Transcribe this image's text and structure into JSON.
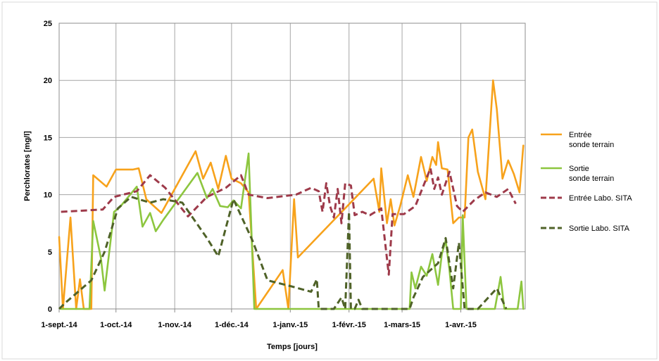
{
  "chart_data": {
    "type": "line",
    "title": "",
    "xlabel": "Temps [jours]",
    "ylabel": "Perchlorates [mg/l]",
    "ylim": [
      0,
      25
    ],
    "yticks": [
      "0",
      "5",
      "10",
      "15",
      "20",
      "25"
    ],
    "xlim": [
      "2014-09-01",
      "2015-05-05"
    ],
    "xticks": [
      {
        "date": "2014-09-01",
        "label": "1-sept.-14"
      },
      {
        "date": "2014-10-01",
        "label": "1-oct.-14"
      },
      {
        "date": "2014-11-01",
        "label": "1-nov.-14"
      },
      {
        "date": "2014-12-01",
        "label": "1-déc.-14"
      },
      {
        "date": "2015-01-01",
        "label": "1-janv.-15"
      },
      {
        "date": "2015-02-01",
        "label": "1-févr.-15"
      },
      {
        "date": "2015-03-01",
        "label": "1-mars-15"
      },
      {
        "date": "2015-04-01",
        "label": "1-avr.-15"
      }
    ],
    "grid": true,
    "legend_position": "right",
    "series": [
      {
        "name": "Entrée\nsonde terrain",
        "color": "#F7A21B",
        "dash": false,
        "points": [
          [
            "2014-09-01",
            6.3
          ],
          [
            "2014-09-03",
            0
          ],
          [
            "2014-09-07",
            8.0
          ],
          [
            "2014-09-10",
            0
          ],
          [
            "2014-09-12",
            2.6
          ],
          [
            "2014-09-14",
            0
          ],
          [
            "2014-09-18",
            0
          ],
          [
            "2014-09-19",
            11.7
          ],
          [
            "2014-09-26",
            10.7
          ],
          [
            "2014-10-01",
            12.2
          ],
          [
            "2014-10-10",
            12.2
          ],
          [
            "2014-10-13",
            12.3
          ],
          [
            "2014-10-17",
            9.6
          ],
          [
            "2014-10-25",
            8.4
          ],
          [
            "2014-11-12",
            13.8
          ],
          [
            "2014-11-16",
            11.4
          ],
          [
            "2014-11-20",
            12.8
          ],
          [
            "2014-11-24",
            10.5
          ],
          [
            "2014-11-28",
            13.4
          ],
          [
            "2014-12-01",
            11.4
          ],
          [
            "2014-12-06",
            11.0
          ],
          [
            "2014-12-10",
            10.2
          ],
          [
            "2014-12-14",
            0
          ],
          [
            "2014-12-28",
            3.4
          ],
          [
            "2014-12-31",
            0
          ],
          [
            "2015-01-03",
            9.6
          ],
          [
            "2015-01-05",
            4.5
          ],
          [
            "2015-02-14",
            11.4
          ],
          [
            "2015-02-17",
            8.5
          ],
          [
            "2015-02-18",
            12.3
          ],
          [
            "2015-02-21",
            7.5
          ],
          [
            "2015-02-23",
            9.6
          ],
          [
            "2015-02-25",
            7.3
          ],
          [
            "2015-02-28",
            9.0
          ],
          [
            "2015-03-04",
            11.7
          ],
          [
            "2015-03-07",
            9.8
          ],
          [
            "2015-03-11",
            13.3
          ],
          [
            "2015-03-14",
            11.2
          ],
          [
            "2015-03-17",
            13.3
          ],
          [
            "2015-03-19",
            12.6
          ],
          [
            "2015-03-20",
            14.6
          ],
          [
            "2015-03-22",
            12.3
          ],
          [
            "2015-03-25",
            12.2
          ],
          [
            "2015-03-28",
            7.5
          ],
          [
            "2015-03-31",
            8.0
          ],
          [
            "2015-04-03",
            8.0
          ],
          [
            "2015-04-05",
            15.0
          ],
          [
            "2015-04-07",
            15.7
          ],
          [
            "2015-04-10",
            12.0
          ],
          [
            "2015-04-14",
            9.6
          ],
          [
            "2015-04-18",
            20.0
          ],
          [
            "2015-04-20",
            17.5
          ],
          [
            "2015-04-23",
            11.4
          ],
          [
            "2015-04-26",
            13.0
          ],
          [
            "2015-04-29",
            11.8
          ],
          [
            "2015-05-02",
            10.2
          ],
          [
            "2015-05-04",
            14.3
          ]
        ]
      },
      {
        "name": "Sortie\nsonde terrain",
        "color": "#8DC63F",
        "dash": false,
        "points": [
          [
            "2014-09-02",
            0
          ],
          [
            "2014-09-17",
            0
          ],
          [
            "2014-09-19",
            7.7
          ],
          [
            "2014-09-23",
            4.5
          ],
          [
            "2014-09-25",
            1.6
          ],
          [
            "2014-09-30",
            8.5
          ],
          [
            "2014-10-03",
            8.9
          ],
          [
            "2014-10-12",
            10.7
          ],
          [
            "2014-10-15",
            7.2
          ],
          [
            "2014-10-19",
            8.4
          ],
          [
            "2014-10-22",
            6.8
          ],
          [
            "2014-10-26",
            7.8
          ],
          [
            "2014-11-13",
            11.9
          ],
          [
            "2014-11-18",
            9.7
          ],
          [
            "2014-11-21",
            10.5
          ],
          [
            "2014-11-25",
            9.0
          ],
          [
            "2014-11-29",
            8.9
          ],
          [
            "2014-12-02",
            9.5
          ],
          [
            "2014-12-06",
            8.8
          ],
          [
            "2014-12-10",
            13.6
          ],
          [
            "2014-12-13",
            0
          ],
          [
            "2015-03-05",
            0
          ],
          [
            "2015-03-06",
            3.2
          ],
          [
            "2015-03-08",
            1.8
          ],
          [
            "2015-03-11",
            3.7
          ],
          [
            "2015-03-14",
            2.9
          ],
          [
            "2015-03-17",
            4.8
          ],
          [
            "2015-03-20",
            2.1
          ],
          [
            "2015-03-22",
            4.8
          ],
          [
            "2015-03-24",
            6.0
          ],
          [
            "2015-03-26",
            3.4
          ],
          [
            "2015-03-28",
            0
          ],
          [
            "2015-04-01",
            0
          ],
          [
            "2015-04-02",
            8.2
          ],
          [
            "2015-04-04",
            0
          ],
          [
            "2015-04-19",
            0
          ],
          [
            "2015-04-22",
            2.8
          ],
          [
            "2015-04-24",
            0
          ],
          [
            "2015-05-01",
            0
          ],
          [
            "2015-05-03",
            2.4
          ],
          [
            "2015-05-04",
            0
          ]
        ]
      },
      {
        "name": "Entrée Labo. SITA",
        "color": "#9E3A4A",
        "dash": true,
        "points": [
          [
            "2014-09-02",
            8.5
          ],
          [
            "2014-09-24",
            8.7
          ],
          [
            "2014-09-30",
            9.8
          ],
          [
            "2014-10-12",
            10.3
          ],
          [
            "2014-10-19",
            11.7
          ],
          [
            "2014-10-27",
            10.6
          ],
          [
            "2014-11-08",
            8.1
          ],
          [
            "2014-11-18",
            9.8
          ],
          [
            "2014-11-28",
            10.6
          ],
          [
            "2014-12-06",
            11.7
          ],
          [
            "2014-12-10",
            10.0
          ],
          [
            "2014-12-20",
            9.7
          ],
          [
            "2015-01-04",
            10.0
          ],
          [
            "2015-01-12",
            10.6
          ],
          [
            "2015-01-16",
            10.3
          ],
          [
            "2015-01-18",
            8.5
          ],
          [
            "2015-01-20",
            11.0
          ],
          [
            "2015-01-22",
            9.0
          ],
          [
            "2015-01-24",
            8.0
          ],
          [
            "2015-01-26",
            10.5
          ],
          [
            "2015-01-28",
            7.5
          ],
          [
            "2015-01-30",
            11.0
          ],
          [
            "2015-02-02",
            10.8
          ],
          [
            "2015-02-04",
            8.2
          ],
          [
            "2015-02-08",
            8.5
          ],
          [
            "2015-02-12",
            8.2
          ],
          [
            "2015-02-18",
            8.8
          ],
          [
            "2015-02-22",
            3.0
          ],
          [
            "2015-02-24",
            8.3
          ],
          [
            "2015-03-02",
            8.3
          ],
          [
            "2015-03-08",
            9.0
          ],
          [
            "2015-03-16",
            12.3
          ],
          [
            "2015-03-18",
            10.5
          ],
          [
            "2015-03-20",
            11.5
          ],
          [
            "2015-03-22",
            10.0
          ],
          [
            "2015-03-26",
            12.0
          ],
          [
            "2015-03-30",
            9.0
          ],
          [
            "2015-04-02",
            8.5
          ],
          [
            "2015-04-08",
            9.5
          ],
          [
            "2015-04-14",
            10.2
          ],
          [
            "2015-04-20",
            9.8
          ],
          [
            "2015-04-26",
            10.5
          ],
          [
            "2015-04-30",
            9.2
          ]
        ]
      },
      {
        "name": "Sortie Labo. SITA",
        "color": "#4F6228",
        "dash": true,
        "points": [
          [
            "2014-09-01",
            0
          ],
          [
            "2014-09-04",
            0.5
          ],
          [
            "2014-09-18",
            2.5
          ],
          [
            "2014-09-25",
            5.0
          ],
          [
            "2014-10-02",
            8.8
          ],
          [
            "2014-10-09",
            9.8
          ],
          [
            "2014-10-19",
            9.3
          ],
          [
            "2014-10-26",
            9.6
          ],
          [
            "2014-11-05",
            9.3
          ],
          [
            "2014-11-18",
            6.2
          ],
          [
            "2014-11-24",
            4.6
          ],
          [
            "2014-12-02",
            9.6
          ],
          [
            "2014-12-12",
            6.0
          ],
          [
            "2014-12-20",
            2.5
          ],
          [
            "2015-01-01",
            2.0
          ],
          [
            "2015-01-12",
            1.5
          ],
          [
            "2015-01-15",
            2.6
          ],
          [
            "2015-01-16",
            0
          ],
          [
            "2015-01-24",
            0
          ],
          [
            "2015-01-28",
            1.0
          ],
          [
            "2015-01-30",
            0
          ],
          [
            "2015-02-01",
            8.5
          ],
          [
            "2015-02-02",
            0
          ],
          [
            "2015-02-04",
            0
          ],
          [
            "2015-02-06",
            0.8
          ],
          [
            "2015-02-08",
            0
          ],
          [
            "2015-03-05",
            0
          ],
          [
            "2015-03-07",
            1.0
          ],
          [
            "2015-03-12",
            2.8
          ],
          [
            "2015-03-20",
            4.0
          ],
          [
            "2015-03-24",
            6.2
          ],
          [
            "2015-03-28",
            1.8
          ],
          [
            "2015-03-31",
            5.8
          ],
          [
            "2015-04-03",
            0
          ],
          [
            "2015-04-10",
            0
          ],
          [
            "2015-04-20",
            1.8
          ],
          [
            "2015-04-25",
            0
          ]
        ]
      }
    ]
  }
}
